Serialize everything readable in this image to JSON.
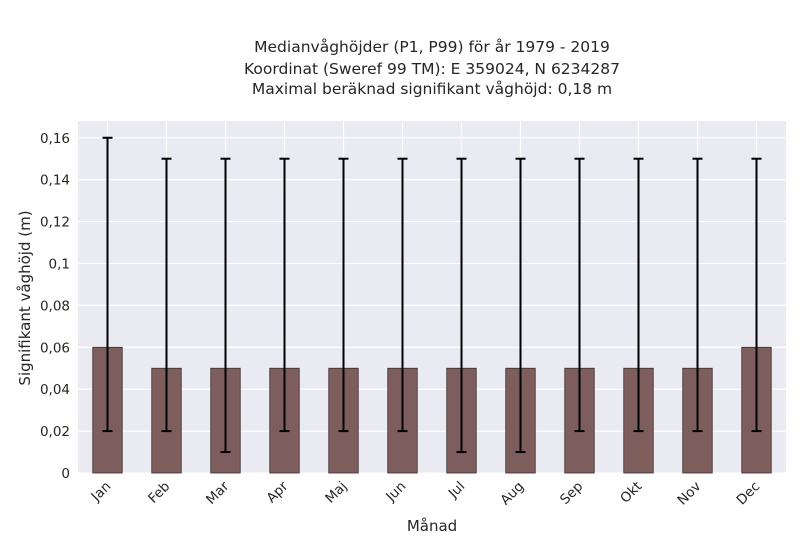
{
  "chart_data": {
    "type": "bar",
    "title_lines": [
      "Medianvåghöjder (P1, P99) för år 1979 - 2019",
      "Koordinat (Sweref 99 TM): E 359024, N 6234287",
      "Maximal beräknad signifikant våghöjd: 0,18 m"
    ],
    "xlabel": "Månad",
    "ylabel": "Signifikant våghöjd (m)",
    "categories": [
      "Jan",
      "Feb",
      "Mar",
      "Apr",
      "Maj",
      "Jun",
      "Jul",
      "Aug",
      "Sep",
      "Okt",
      "Nov",
      "Dec"
    ],
    "values": [
      0.06,
      0.05,
      0.05,
      0.05,
      0.05,
      0.05,
      0.05,
      0.05,
      0.05,
      0.05,
      0.05,
      0.06
    ],
    "error_low": [
      0.02,
      0.02,
      0.01,
      0.02,
      0.02,
      0.02,
      0.01,
      0.01,
      0.02,
      0.02,
      0.02,
      0.02
    ],
    "error_high": [
      0.16,
      0.15,
      0.15,
      0.15,
      0.15,
      0.15,
      0.15,
      0.15,
      0.15,
      0.15,
      0.15,
      0.15
    ],
    "yticks": [
      0,
      0.02,
      0.04,
      0.06,
      0.08,
      0.1,
      0.12,
      0.14,
      0.16
    ],
    "ytick_labels": [
      "0",
      "0,02",
      "0,04",
      "0,06",
      "0,08",
      "0,1",
      "0,12",
      "0,14",
      "0,16"
    ],
    "ylim": [
      0,
      0.168
    ],
    "grid": true,
    "colors": {
      "bar": "#7e5d5d",
      "bar_edge": "#3a2e2e",
      "errorbar": "#000000",
      "plot_bg": "#eaeaf2",
      "grid": "#ffffff"
    }
  }
}
